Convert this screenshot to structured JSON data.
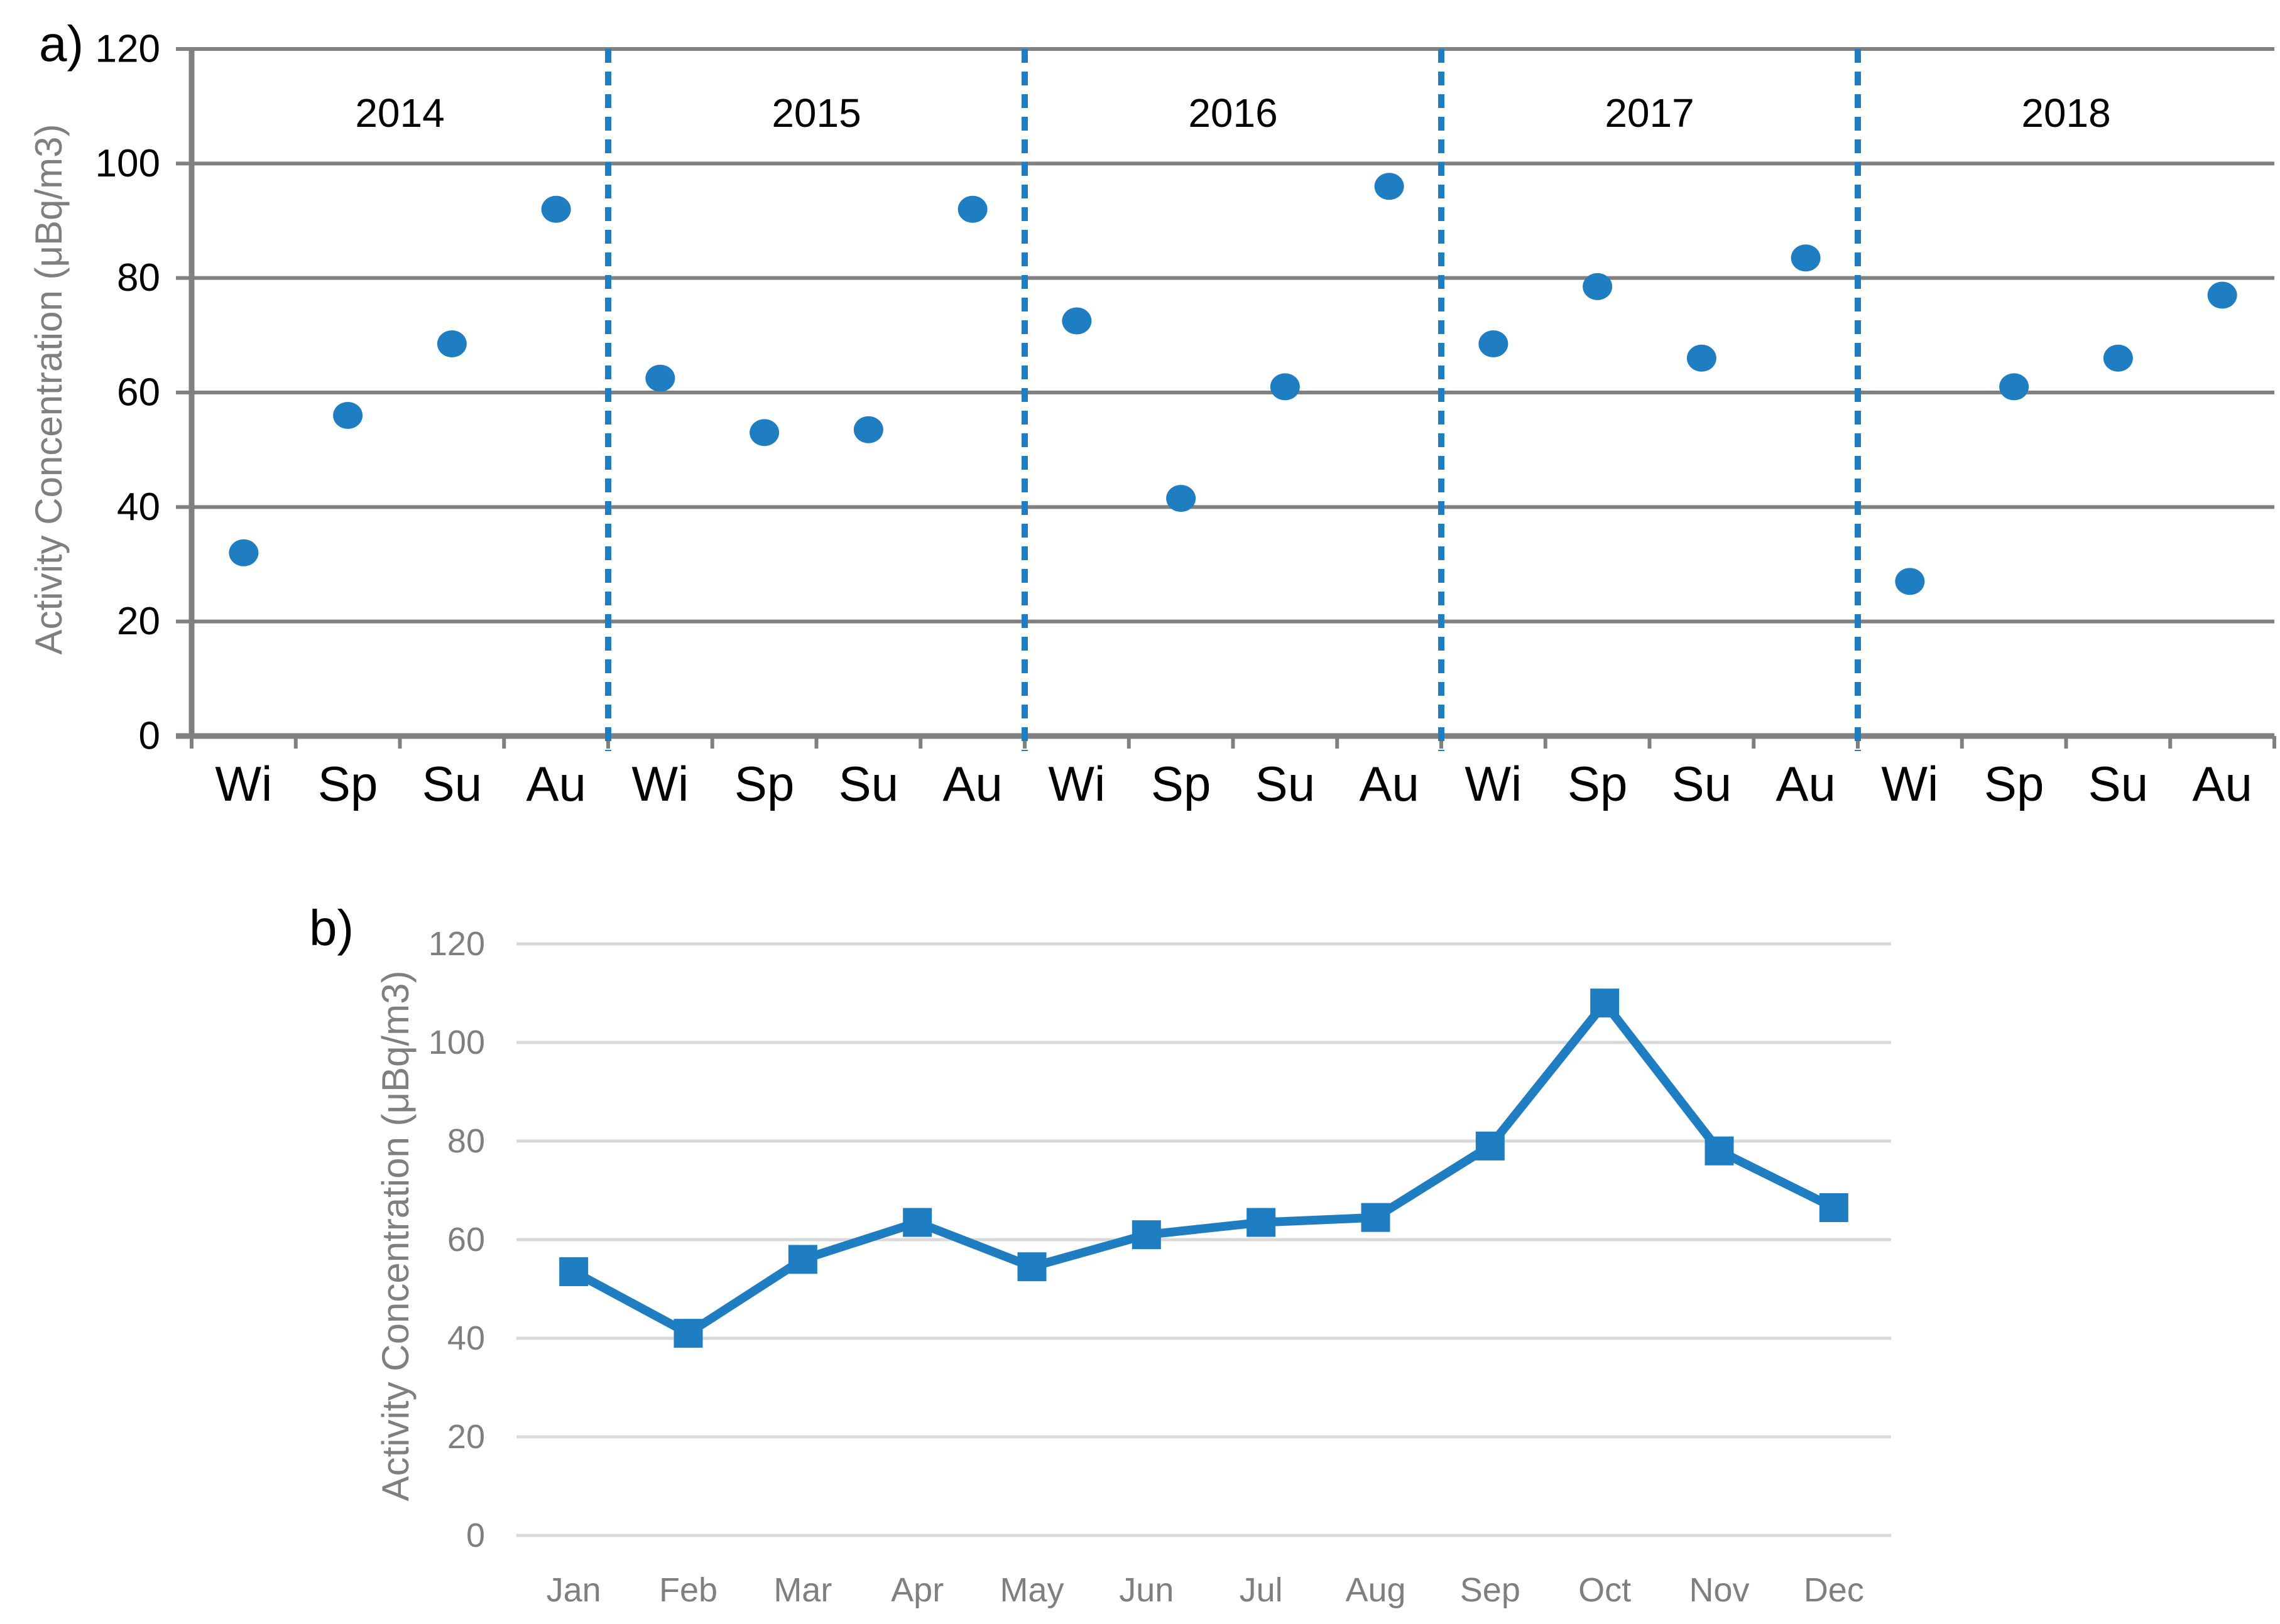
{
  "panels": {
    "a": {
      "label": "a)",
      "y_axis_title": "Activity Concentration (μBq/m3)"
    },
    "b": {
      "label": "b)",
      "y_axis_title": "Activity Concentration (μBq/m3)"
    }
  },
  "colors": {
    "series_blue": "#1f7ec1",
    "grid_dark": "#808080",
    "grid_light": "#d9d9d9",
    "text_black": "#000000",
    "text_gray": "#7f7f7f"
  },
  "chart_data": [
    {
      "id": "panel-a-seasonal-scatter",
      "type": "scatter",
      "title": "",
      "xlabel": "",
      "ylabel": "Activity Concentration (μBq/m3)",
      "ylim": [
        0,
        120
      ],
      "yticks": [
        0,
        20,
        40,
        60,
        80,
        100,
        120
      ],
      "grid": true,
      "legend_position": "none",
      "year_groups": [
        "2014",
        "2015",
        "2016",
        "2017",
        "2018"
      ],
      "separator_style": "dashed-vertical-between-years",
      "categories": [
        "Wi",
        "Sp",
        "Su",
        "Au",
        "Wi",
        "Sp",
        "Su",
        "Au",
        "Wi",
        "Sp",
        "Su",
        "Au",
        "Wi",
        "Sp",
        "Su",
        "Au",
        "Wi",
        "Sp",
        "Su",
        "Au"
      ],
      "values": [
        32,
        56,
        68.5,
        92,
        62.5,
        53,
        53.5,
        92,
        72.5,
        41.5,
        61,
        96,
        68.5,
        78.5,
        66,
        83.5,
        27,
        61,
        66,
        77
      ]
    },
    {
      "id": "panel-b-monthly-line",
      "type": "line",
      "title": "",
      "xlabel": "",
      "ylabel": "Activity Concentration (μBq/m3)",
      "ylim": [
        0,
        120
      ],
      "yticks": [
        0,
        20,
        40,
        60,
        80,
        100,
        120
      ],
      "grid": true,
      "legend_position": "none",
      "marker": "square",
      "categories": [
        "Jan",
        "Feb",
        "Mar",
        "Apr",
        "May",
        "Jun",
        "Jul",
        "Aug",
        "Sep",
        "Oct",
        "Nov",
        "Dec"
      ],
      "values": [
        53.5,
        41,
        56,
        63.5,
        54.5,
        61,
        63.5,
        64.5,
        79,
        108,
        78,
        66.5
      ]
    }
  ]
}
